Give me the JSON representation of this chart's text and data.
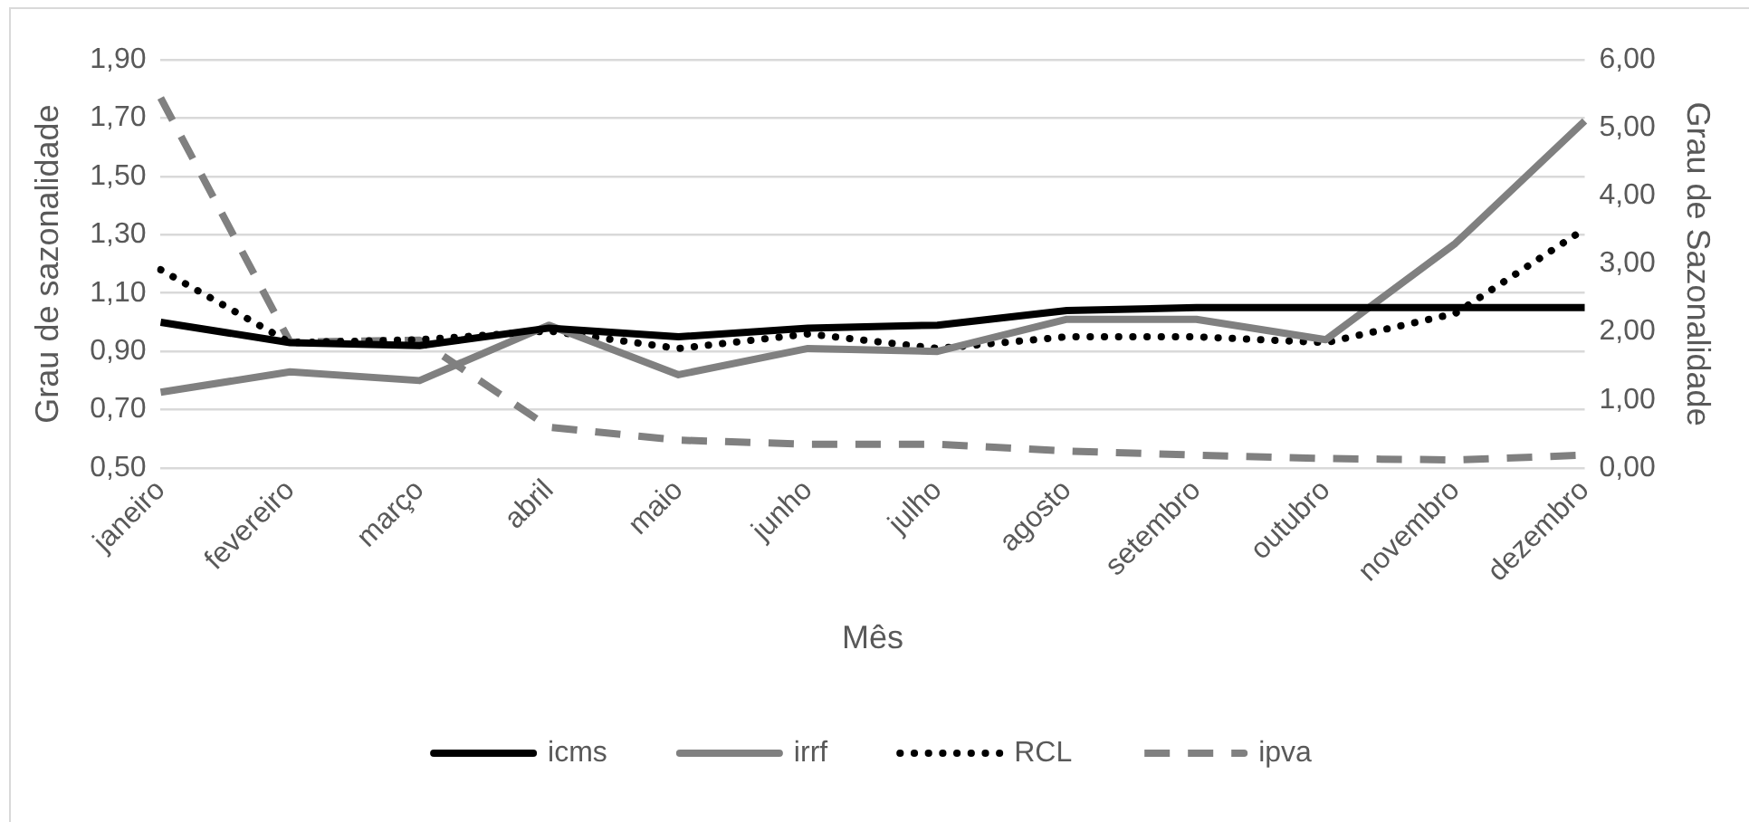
{
  "chart_data": {
    "type": "line",
    "xlabel": "Mês",
    "ylabel": "Grau de sazonalidade",
    "y2label": "Grau de Sazonalidade",
    "categories": [
      "janeiro",
      "fevereiro",
      "março",
      "abril",
      "maio",
      "junho",
      "julho",
      "agosto",
      "setembro",
      "outubro",
      "novembro",
      "dezembro"
    ],
    "series": [
      {
        "name": "icms",
        "color": "#000000",
        "line_style": "solid",
        "values": [
          1.0,
          0.93,
          0.92,
          0.98,
          0.95,
          0.98,
          0.99,
          1.04,
          1.05,
          1.05,
          1.05,
          1.05
        ]
      },
      {
        "name": "irrf",
        "color": "#808080",
        "line_style": "solid",
        "values": [
          0.76,
          0.83,
          0.8,
          0.99,
          0.82,
          0.91,
          0.9,
          1.01,
          1.01,
          0.94,
          1.27,
          1.69
        ]
      },
      {
        "name": "RCL",
        "color": "#000000",
        "line_style": "dotted",
        "values": [
          1.18,
          0.93,
          0.94,
          0.97,
          0.91,
          0.96,
          0.91,
          0.95,
          0.95,
          0.93,
          1.03,
          1.32
        ]
      },
      {
        "name": "ipva",
        "color": "#808080",
        "line_style": "dashed",
        "axis": "y2",
        "values": [
          5.44,
          1.85,
          1.88,
          0.6,
          0.41,
          0.35,
          0.35,
          0.25,
          0.19,
          0.14,
          0.12,
          0.19
        ]
      }
    ],
    "ylim": [
      0.5,
      1.9
    ],
    "yticks": [
      {
        "value": 0.5,
        "label": "0,50"
      },
      {
        "value": 0.7,
        "label": "0,70"
      },
      {
        "value": 0.9,
        "label": "0,90"
      },
      {
        "value": 1.1,
        "label": "1,10"
      },
      {
        "value": 1.3,
        "label": "1,30"
      },
      {
        "value": 1.5,
        "label": "1,50"
      },
      {
        "value": 1.7,
        "label": "1,70"
      },
      {
        "value": 1.9,
        "label": "1,90"
      }
    ],
    "y2lim": [
      0,
      6
    ],
    "y2ticks": [
      {
        "value": 0,
        "label": "0,00"
      },
      {
        "value": 1,
        "label": "1,00"
      },
      {
        "value": 2,
        "label": "2,00"
      },
      {
        "value": 3,
        "label": "3,00"
      },
      {
        "value": 4,
        "label": "4,00"
      },
      {
        "value": 5,
        "label": "5,00"
      },
      {
        "value": 6,
        "label": "6,00"
      }
    ],
    "grid": "y",
    "legend": "bottom",
    "marker": "none"
  }
}
